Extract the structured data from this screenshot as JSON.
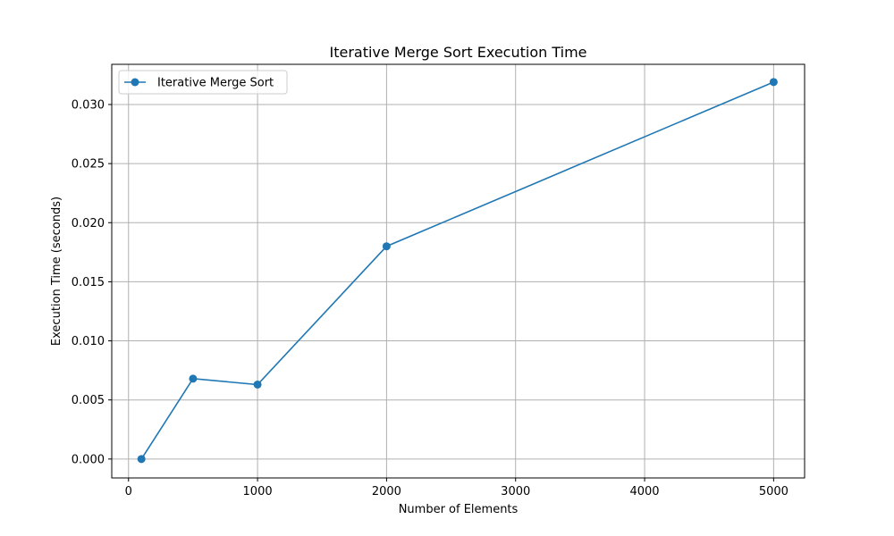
{
  "chart_data": {
    "type": "line",
    "title": "Iterative Merge Sort Execution Time",
    "xlabel": "Number of Elements",
    "ylabel": "Execution Time (seconds)",
    "xlim": [
      -130,
      5240
    ],
    "ylim": [
      -0.0016,
      0.0334
    ],
    "xticks": [
      0,
      1000,
      2000,
      3000,
      4000,
      5000
    ],
    "xtick_labels": [
      "0",
      "1000",
      "2000",
      "3000",
      "4000",
      "5000"
    ],
    "yticks": [
      0.0,
      0.005,
      0.01,
      0.015,
      0.02,
      0.025,
      0.03
    ],
    "ytick_labels": [
      "0.000",
      "0.005",
      "0.010",
      "0.015",
      "0.020",
      "0.025",
      "0.030"
    ],
    "grid": true,
    "legend_position": "top-left",
    "series": [
      {
        "name": "Iterative Merge Sort",
        "color": "#1f77b4",
        "marker": "circle",
        "x": [
          100,
          500,
          1000,
          2000,
          5000
        ],
        "y": [
          0.0,
          0.0068,
          0.0063,
          0.018,
          0.0319
        ]
      }
    ]
  }
}
